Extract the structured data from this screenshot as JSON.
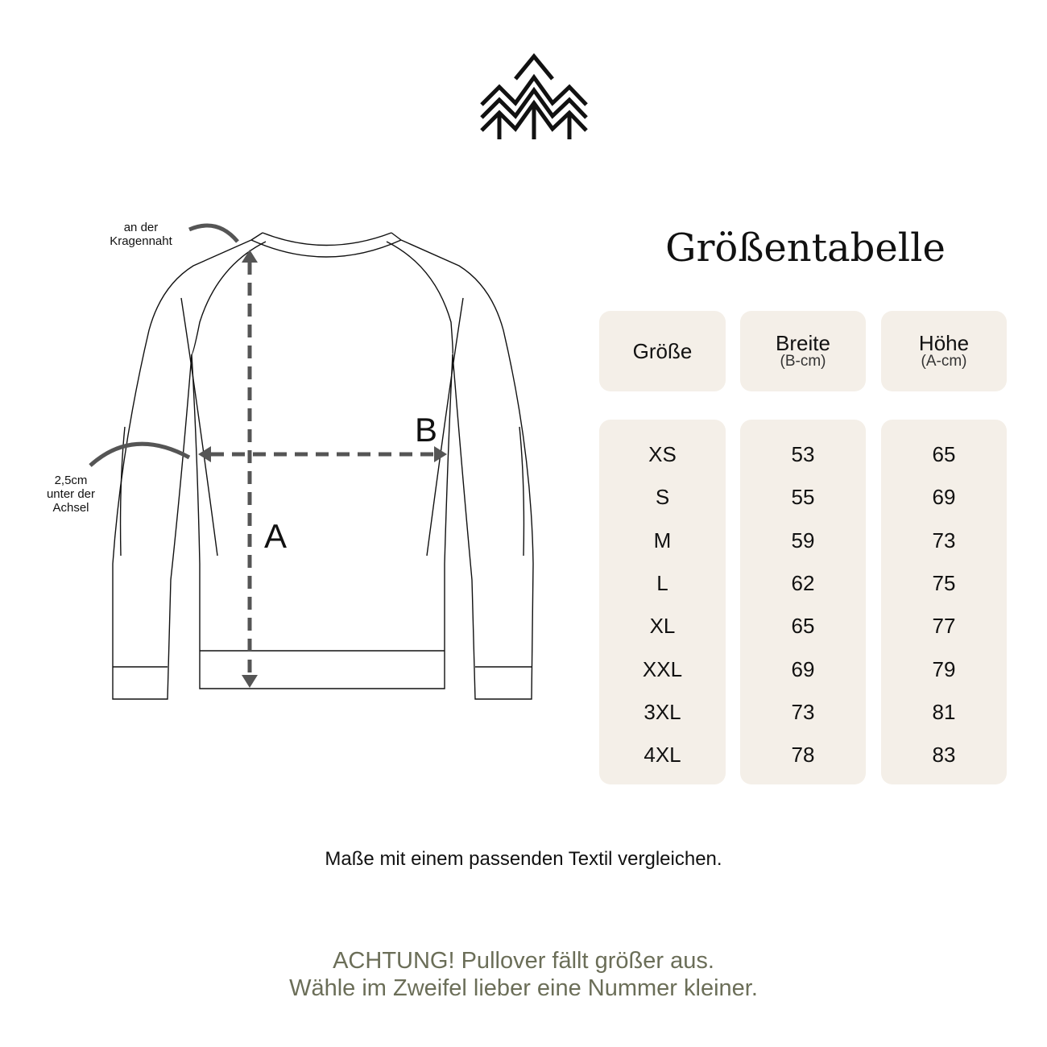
{
  "logo": {
    "icon": "pine-trees-logo"
  },
  "diagram": {
    "collar_label": [
      "an der",
      "Kragennaht"
    ],
    "armpit_label": [
      "2,5cm",
      "unter der",
      "Achsel"
    ],
    "letter_a": "A",
    "letter_b": "B",
    "arrow_color": "#555555"
  },
  "table": {
    "title": "Größentabelle",
    "headers": [
      {
        "main": "Größe",
        "sub": ""
      },
      {
        "main": "Breite",
        "sub": "(B-cm)"
      },
      {
        "main": "Höhe",
        "sub": "(A-cm)"
      }
    ],
    "sizes": [
      "XS",
      "S",
      "M",
      "L",
      "XL",
      "XXL",
      "3XL",
      "4XL"
    ],
    "breite": [
      "53",
      "55",
      "59",
      "62",
      "65",
      "69",
      "73",
      "78"
    ],
    "hoehe": [
      "65",
      "69",
      "73",
      "75",
      "77",
      "79",
      "81",
      "83"
    ],
    "cell_bg": "#f4efe8"
  },
  "note": "Maße mit einem passenden Textil  vergleichen.",
  "warning": {
    "line1": "ACHTUNG! Pullover fällt größer aus.",
    "line2": "Wähle im Zweifel lieber eine Nummer kleiner.",
    "color": "#6b6e58"
  }
}
